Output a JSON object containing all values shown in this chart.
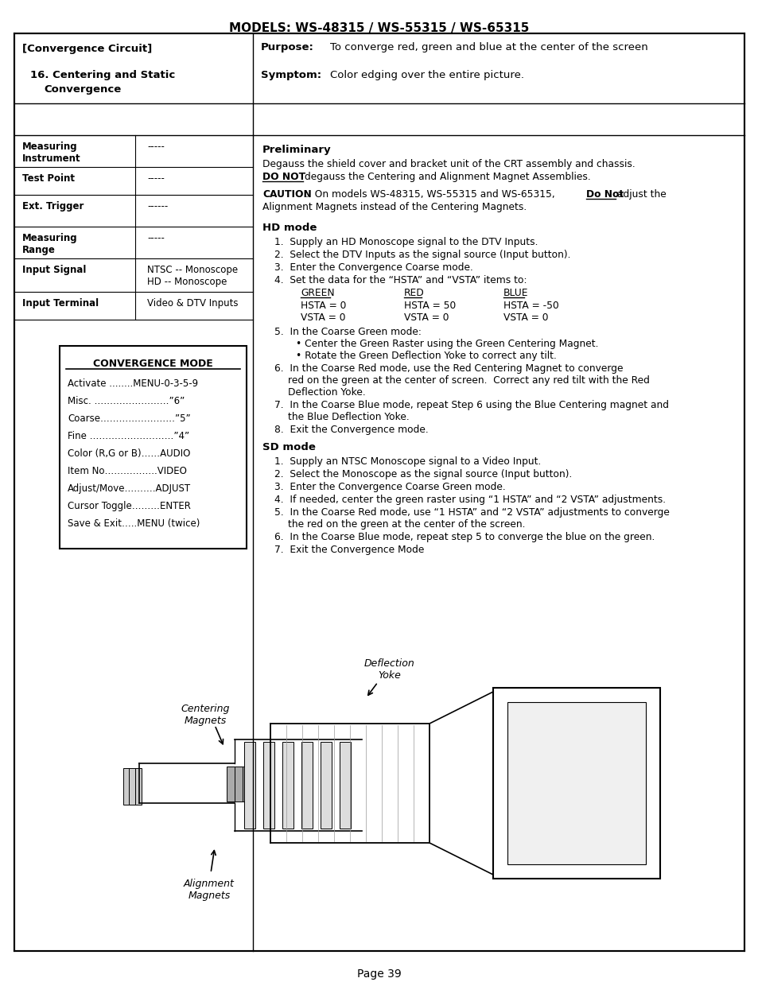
{
  "title": "MODELS: WS-48315 / WS-55315 / WS-65315",
  "page_number": "Page 39",
  "bg_color": "#ffffff",
  "text_color": "#000000",
  "table_rows": [
    {
      "label": "Measuring\nInstrument",
      "value": "-----"
    },
    {
      "label": "Test Point",
      "value": "-----"
    },
    {
      "label": "Ext. Trigger",
      "value": "------"
    },
    {
      "label": "Measuring\nRange",
      "value": "-----"
    },
    {
      "label": "Input Signal",
      "value": "NTSC -- Monoscope\nHD -- Monoscope"
    },
    {
      "label": "Input Terminal",
      "value": "Video & DTV Inputs"
    }
  ],
  "convergence_box": {
    "title": "CONVERGENCE MODE",
    "lines": [
      "Activate ........MENU-0-3-5-9",
      "Misc. ……………………”6”",
      "Coarse……………………”5”",
      "Fine ………………………”4”",
      "Color (R,G or B)……AUDIO",
      "Item No……………..VIDEO",
      "Adjust/Move……….ADJUST",
      "Cursor Toggle………ENTER",
      "Save & Exit…..MENU (twice)"
    ]
  }
}
